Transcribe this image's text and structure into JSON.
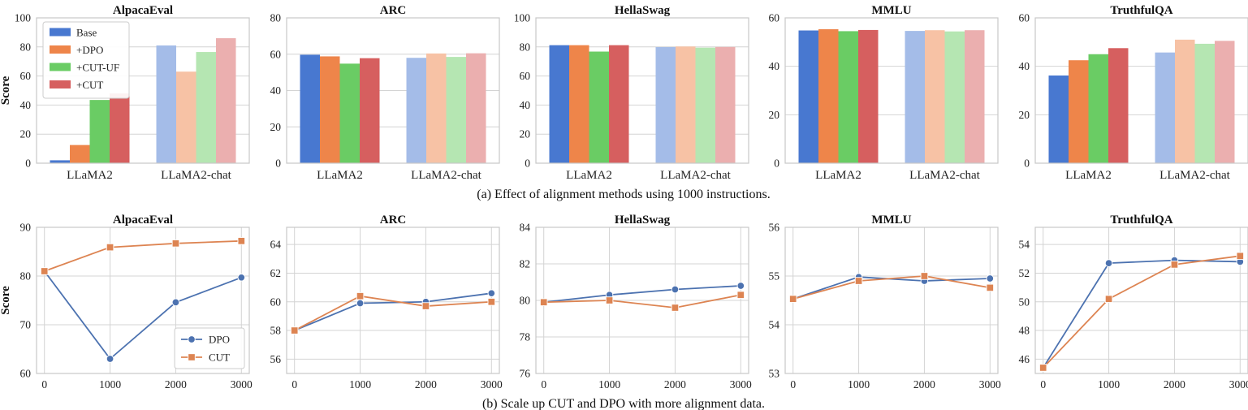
{
  "colors": {
    "Base": "#4878d0",
    "+DPO": "#ee854a",
    "+CUT-UF": "#6acc64",
    "+CUT": "#d65f5f",
    "DPO": "#4c72b0",
    "CUT": "#dd8452"
  },
  "captions": {
    "a": "(a) Effect of alignment methods using 1000 instructions.",
    "b": "(b) Scale up CUT and DPO with more alignment data."
  },
  "chart_data": [
    {
      "panel": "a",
      "type": "bar",
      "title": "AlpacaEval",
      "ylabel": "Score",
      "categories": [
        "LLaMA2",
        "LLaMA2-chat"
      ],
      "ylim": [
        0,
        100
      ],
      "yticks": [
        0,
        20,
        40,
        60,
        80,
        100
      ],
      "legend": "top-left",
      "series": [
        {
          "name": "Base",
          "values": [
            2,
            81
          ]
        },
        {
          "name": "+DPO",
          "values": [
            12.5,
            63
          ]
        },
        {
          "name": "+CUT-UF",
          "values": [
            43.5,
            76.5
          ]
        },
        {
          "name": "+CUT",
          "values": [
            48,
            86
          ]
        }
      ]
    },
    {
      "panel": "a",
      "type": "bar",
      "title": "ARC",
      "ylabel": "",
      "categories": [
        "LLaMA2",
        "LLaMA2-chat"
      ],
      "ylim": [
        0,
        80
      ],
      "yticks": [
        0,
        20,
        40,
        60,
        80
      ],
      "series": [
        {
          "name": "Base",
          "values": [
            59.7,
            58
          ]
        },
        {
          "name": "+DPO",
          "values": [
            58.8,
            60.4
          ]
        },
        {
          "name": "+CUT-UF",
          "values": [
            54.8,
            58.5
          ]
        },
        {
          "name": "+CUT",
          "values": [
            57.8,
            60.5
          ]
        }
      ]
    },
    {
      "panel": "a",
      "type": "bar",
      "title": "HellaSwag",
      "ylabel": "",
      "categories": [
        "LLaMA2",
        "LLaMA2-chat"
      ],
      "ylim": [
        0,
        100
      ],
      "yticks": [
        0,
        20,
        40,
        60,
        80,
        100
      ],
      "series": [
        {
          "name": "Base",
          "values": [
            81.2,
            79.9
          ]
        },
        {
          "name": "+DPO",
          "values": [
            81.2,
            80.3
          ]
        },
        {
          "name": "+CUT-UF",
          "values": [
            76.8,
            79.5
          ]
        },
        {
          "name": "+CUT",
          "values": [
            81.2,
            80
          ]
        }
      ]
    },
    {
      "panel": "a",
      "type": "bar",
      "title": "MMLU",
      "ylabel": "",
      "categories": [
        "LLaMA2",
        "LLaMA2-chat"
      ],
      "ylim": [
        0,
        60
      ],
      "yticks": [
        0,
        20,
        40,
        60
      ],
      "series": [
        {
          "name": "Base",
          "values": [
            54.8,
            54.6
          ]
        },
        {
          "name": "+DPO",
          "values": [
            55.3,
            54.9
          ]
        },
        {
          "name": "+CUT-UF",
          "values": [
            54.5,
            54.4
          ]
        },
        {
          "name": "+CUT",
          "values": [
            55,
            54.9
          ]
        }
      ]
    },
    {
      "panel": "a",
      "type": "bar",
      "title": "TruthfulQA",
      "ylabel": "",
      "categories": [
        "LLaMA2",
        "LLaMA2-chat"
      ],
      "ylim": [
        0,
        60
      ],
      "yticks": [
        0,
        20,
        40,
        60
      ],
      "series": [
        {
          "name": "Base",
          "values": [
            36.2,
            45.7
          ]
        },
        {
          "name": "+DPO",
          "values": [
            42.5,
            51
          ]
        },
        {
          "name": "+CUT-UF",
          "values": [
            45,
            49.3
          ]
        },
        {
          "name": "+CUT",
          "values": [
            47.5,
            50.5
          ]
        }
      ]
    },
    {
      "panel": "b",
      "type": "line",
      "title": "AlpacaEval",
      "ylabel": "Score",
      "x": [
        0,
        1000,
        2000,
        3000
      ],
      "xlim": [
        -120,
        3120
      ],
      "ylim": [
        60,
        90
      ],
      "yticks": [
        60,
        70,
        80,
        90
      ],
      "legend": "bottom-right",
      "series": [
        {
          "name": "DPO",
          "marker": "circle",
          "values": [
            81,
            63,
            74.6,
            79.7
          ]
        },
        {
          "name": "CUT",
          "marker": "square",
          "values": [
            81,
            85.9,
            86.7,
            87.2
          ]
        }
      ]
    },
    {
      "panel": "b",
      "type": "line",
      "title": "ARC",
      "ylabel": "",
      "x": [
        0,
        1000,
        2000,
        3000
      ],
      "xlim": [
        -120,
        3120
      ],
      "ylim": [
        55,
        65.2
      ],
      "yticks": [
        56,
        58,
        60,
        62,
        64
      ],
      "series": [
        {
          "name": "DPO",
          "marker": "circle",
          "values": [
            58,
            59.9,
            60,
            60.6
          ]
        },
        {
          "name": "CUT",
          "marker": "square",
          "values": [
            58,
            60.4,
            59.7,
            60
          ]
        }
      ]
    },
    {
      "panel": "b",
      "type": "line",
      "title": "HellaSwag",
      "ylabel": "",
      "x": [
        0,
        1000,
        2000,
        3000
      ],
      "xlim": [
        -120,
        3120
      ],
      "ylim": [
        76,
        84
      ],
      "yticks": [
        76,
        78,
        80,
        82,
        84
      ],
      "series": [
        {
          "name": "DPO",
          "marker": "circle",
          "values": [
            79.9,
            80.3,
            80.6,
            80.8
          ]
        },
        {
          "name": "CUT",
          "marker": "square",
          "values": [
            79.9,
            80,
            79.6,
            80.3
          ]
        }
      ]
    },
    {
      "panel": "b",
      "type": "line",
      "title": "MMLU",
      "ylabel": "",
      "x": [
        0,
        1000,
        2000,
        3000
      ],
      "xlim": [
        -120,
        3120
      ],
      "ylim": [
        53,
        56
      ],
      "yticks": [
        53,
        54,
        55,
        56
      ],
      "series": [
        {
          "name": "DPO",
          "marker": "circle",
          "values": [
            54.53,
            54.98,
            54.9,
            54.95
          ]
        },
        {
          "name": "CUT",
          "marker": "square",
          "values": [
            54.53,
            54.9,
            55,
            54.76
          ]
        }
      ]
    },
    {
      "panel": "b",
      "type": "line",
      "title": "TruthfulQA",
      "ylabel": "",
      "x": [
        0,
        1000,
        2000,
        3000
      ],
      "xlim": [
        -120,
        3120
      ],
      "ylim": [
        45,
        55.2
      ],
      "yticks": [
        46,
        48,
        50,
        52,
        54
      ],
      "series": [
        {
          "name": "DPO",
          "marker": "circle",
          "values": [
            45.4,
            52.7,
            52.9,
            52.8
          ]
        },
        {
          "name": "CUT",
          "marker": "square",
          "values": [
            45.4,
            50.2,
            52.6,
            53.2
          ]
        }
      ]
    }
  ]
}
